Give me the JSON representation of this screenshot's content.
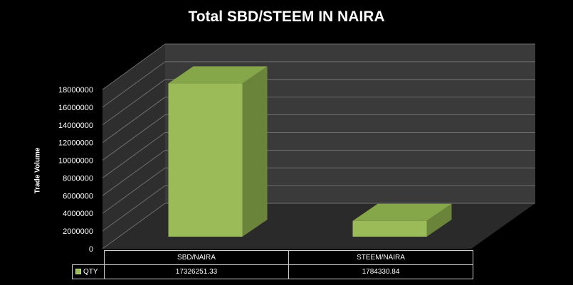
{
  "chart_data": {
    "type": "bar",
    "title": "Total SBD/STEEM IN NAIRA",
    "ylabel": "Trade Volume",
    "categories": [
      "SBD/NAIRA",
      "STEEM/NAIRA"
    ],
    "series": [
      {
        "name": "QTY",
        "values": [
          17326251.33,
          1784330.84
        ]
      }
    ],
    "y_ticks": [
      "0",
      "2000000",
      "4000000",
      "6000000",
      "8000000",
      "10000000",
      "12000000",
      "14000000",
      "16000000",
      "18000000"
    ],
    "table_values": [
      "17326251.33",
      "1784330.84"
    ],
    "ylim": [
      0,
      18000000
    ],
    "grid": true,
    "legend": "data-table"
  },
  "colors": {
    "background": "#000000",
    "back_wall": "#3a3a3a",
    "side_wall": "#2e2e2e",
    "floor": "#2a2a2a",
    "gridline": "#6e6e6e",
    "bar_front": "#9bbb59",
    "bar_top": "#86a64a",
    "bar_side": "#6a843a"
  }
}
